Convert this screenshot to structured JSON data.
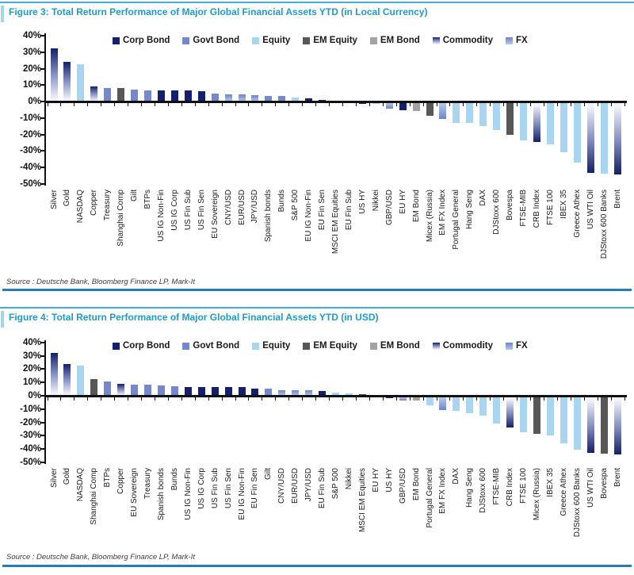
{
  "source_note": "Source : Deutsche Bank, Bloomberg Finance LP, Mark-It",
  "legend": [
    "Corp Bond",
    "Govt Bond",
    "Equity",
    "EM Equity",
    "EM Bond",
    "Commodity",
    "FX"
  ],
  "y_ticks": [
    "40%",
    "30%",
    "20%",
    "10%",
    "0%",
    "-10%",
    "-20%",
    "-30%",
    "-40%",
    "-50%"
  ],
  "colors": {
    "title_text": "#1d9bc7",
    "top_rule": "#45acd2",
    "accent_bar": "#a5d5ea",
    "bottom_rule": "#2a7ab8",
    "axis": "#111111",
    "series": {
      "Corp Bond": "#14206e",
      "Govt Bond": "#7488cb",
      "Equity": "#a9d5f0",
      "EM Equity": "#575757",
      "EM Bond": "#a3a3a3"
    },
    "gradients": {
      "Commodity": {
        "dark": "#141f68",
        "mid": "#7d88bd",
        "light": "#f2f3f9"
      },
      "FX": {
        "dark": "#6b84c9",
        "light": "#bac9eb"
      }
    }
  },
  "chart_data": [
    {
      "type": "bar",
      "title": "Figure 3: Total Return Performance of Major Global Financial Assets YTD (in Local Currency)",
      "xlabel": "",
      "ylabel": "",
      "y_unit": "%",
      "ylim": [
        -50,
        40
      ],
      "grid": false,
      "legend_position": "top",
      "sort": "descending",
      "categories": [
        "Silver",
        "Gold",
        "NASDAQ",
        "Copper",
        "Treasury",
        "Shanghai Comp",
        "Gilt",
        "BTPs",
        "US IG Non-Fin",
        "US IG Corp",
        "US Fin Sub",
        "US Fin Sen",
        "EU Sovereign",
        "CNY/USD",
        "EUR/USD",
        "JPY/USD",
        "Spanish bonds",
        "Bunds",
        "S&P 500",
        "EU IG Non-Fin",
        "EU Fin Sen",
        "MSCI EM Equities",
        "EU Fin Sub",
        "US HY",
        "Nikkei",
        "GBP/USD",
        "EU HY",
        "EM Bond",
        "Micex (Russia)",
        "EM FX Index",
        "Portugal General",
        "Hang Seng",
        "DAX",
        "DJStoxx 600",
        "Bovespa",
        "FTSE-MIB",
        "CRB Index",
        "FTSE 100",
        "IBEX 35",
        "Greece Athex",
        "US WTI Oil",
        "DJStoxx 600 Banks",
        "Brent"
      ],
      "values": [
        32.5,
        24.0,
        22.8,
        9.2,
        8.2,
        8.1,
        7.3,
        6.8,
        6.7,
        6.6,
        6.6,
        6.2,
        4.8,
        4.2,
        4.1,
        3.7,
        3.6,
        3.2,
        2.6,
        1.9,
        1.0,
        0.5,
        0.3,
        -0.4,
        -0.6,
        -3.5,
        -4.5,
        -5.0,
        -7.7,
        -9.6,
        -12.0,
        -12.1,
        -14.0,
        -16.3,
        -19.3,
        -22.6,
        -23.6,
        -25.0,
        -29.9,
        -36.1,
        -42.5,
        -42.8,
        -43.4
      ],
      "asset_class": [
        "Commodity",
        "Commodity",
        "Equity",
        "Commodity",
        "Govt Bond",
        "EM Equity",
        "Govt Bond",
        "Govt Bond",
        "Corp Bond",
        "Corp Bond",
        "Corp Bond",
        "Corp Bond",
        "Govt Bond",
        "FX",
        "FX",
        "FX",
        "Govt Bond",
        "Govt Bond",
        "Equity",
        "Corp Bond",
        "Corp Bond",
        "EM Equity",
        "Corp Bond",
        "Corp Bond",
        "Equity",
        "FX",
        "Corp Bond",
        "EM Bond",
        "EM Equity",
        "FX",
        "Equity",
        "Equity",
        "Equity",
        "Equity",
        "EM Equity",
        "Equity",
        "Commodity",
        "Equity",
        "Equity",
        "Equity",
        "Commodity",
        "Equity",
        "Commodity"
      ]
    },
    {
      "type": "bar",
      "title": "Figure 4: Total Return Performance of Major Global Financial Assets YTD (in USD)",
      "xlabel": "",
      "ylabel": "",
      "y_unit": "%",
      "ylim": [
        -50,
        40
      ],
      "grid": false,
      "legend_position": "top",
      "sort": "descending",
      "categories": [
        "Silver",
        "Gold",
        "NASDAQ",
        "Shanghai Comp",
        "BTPs",
        "Copper",
        "EU Sovereign",
        "Treasury",
        "Spanish bonds",
        "Bunds",
        "US IG Non-Fin",
        "US IG Corp",
        "US Fin Sub",
        "US Fin Sen",
        "EU IG Non-Fin",
        "EU Fin Sen",
        "Gilt",
        "CNY/USD",
        "EUR/USD",
        "JPY/USD",
        "EU Fin Sub",
        "S&P 500",
        "Nikkei",
        "MSCI EM Equities",
        "EU HY",
        "US HY",
        "GBP/USD",
        "EM Bond",
        "Portugal General",
        "EM FX Index",
        "DAX",
        "Hang Seng",
        "DJStoxx 600",
        "FTSE-MIB",
        "CRB Index",
        "FTSE 100",
        "Micex (Russia)",
        "IBEX 35",
        "Greece Athex",
        "DJStoxx 600 Banks",
        "US WTI Oil",
        "Bovespa",
        "Brent"
      ],
      "values": [
        32.3,
        23.8,
        22.5,
        12.5,
        11.0,
        9.0,
        8.6,
        8.2,
        7.6,
        7.2,
        6.8,
        6.7,
        6.6,
        6.5,
        6.3,
        5.5,
        5.2,
        4.4,
        4.2,
        4.0,
        3.6,
        2.4,
        1.9,
        1.0,
        0.6,
        -0.4,
        -2.3,
        -2.6,
        -6.0,
        -9.4,
        -10.4,
        -12.0,
        -13.5,
        -19.4,
        -22.4,
        -26.4,
        -27.4,
        -28.8,
        -34.4,
        -39.4,
        -41.4,
        -42.3,
        -42.6
      ],
      "asset_class": [
        "Commodity",
        "Commodity",
        "Equity",
        "EM Equity",
        "Govt Bond",
        "Commodity",
        "Govt Bond",
        "Govt Bond",
        "Govt Bond",
        "Govt Bond",
        "Corp Bond",
        "Corp Bond",
        "Corp Bond",
        "Corp Bond",
        "Corp Bond",
        "Corp Bond",
        "Govt Bond",
        "FX",
        "FX",
        "FX",
        "Corp Bond",
        "Equity",
        "Equity",
        "EM Equity",
        "Corp Bond",
        "Corp Bond",
        "FX",
        "EM Bond",
        "Equity",
        "FX",
        "Equity",
        "Equity",
        "Equity",
        "Equity",
        "Commodity",
        "Equity",
        "EM Equity",
        "Equity",
        "Equity",
        "Equity",
        "Commodity",
        "EM Equity",
        "Commodity"
      ]
    }
  ]
}
